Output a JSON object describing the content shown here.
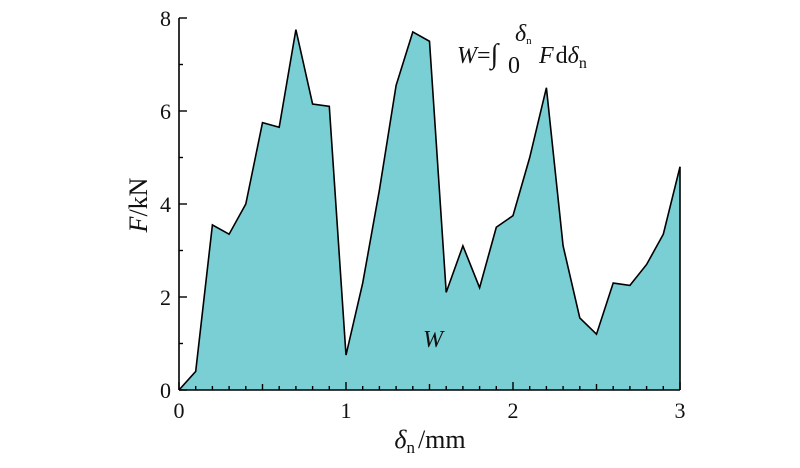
{
  "chart_data": {
    "type": "area",
    "x": [
      0,
      0.1,
      0.2,
      0.3,
      0.4,
      0.5,
      0.6,
      0.7,
      0.8,
      0.9,
      1.0,
      1.1,
      1.2,
      1.3,
      1.4,
      1.5,
      1.6,
      1.7,
      1.8,
      1.9,
      2.0,
      2.1,
      2.2,
      2.3,
      2.4,
      2.5,
      2.6,
      2.7,
      2.8,
      2.9,
      3.0
    ],
    "series": [
      {
        "values": [
          0.0,
          0.4,
          3.55,
          3.35,
          4.0,
          5.75,
          5.65,
          7.75,
          6.15,
          6.1,
          0.75,
          2.3,
          4.3,
          6.55,
          7.7,
          7.5,
          2.1,
          3.1,
          2.2,
          3.5,
          3.75,
          5.0,
          6.5,
          3.1,
          1.55,
          1.2,
          2.3,
          2.25,
          2.7,
          3.35,
          4.8
        ],
        "color": "#79cfd3"
      }
    ],
    "xlim": [
      0,
      3
    ],
    "ylim": [
      0,
      8
    ],
    "xticks": [
      "0",
      "1",
      "2",
      "3"
    ],
    "yticks": [
      "0",
      "2",
      "4",
      "6",
      "8"
    ],
    "xlabel": {
      "symbol": "δ",
      "sub": "n",
      "unit": "/mm"
    },
    "ylabel": {
      "symbol": "F",
      "unit": "/kN"
    },
    "annotations": {
      "area_label": "W",
      "formula": {
        "lhs": "W",
        "eq": "=",
        "integral": "∫",
        "lower": "0",
        "upper_symbol": "δ",
        "upper_sub": "n",
        "integrand": "F",
        "d": "d",
        "var": "δ",
        "var_sub": "n"
      }
    },
    "grid": false,
    "legend": "none",
    "line_color": "#000000"
  }
}
